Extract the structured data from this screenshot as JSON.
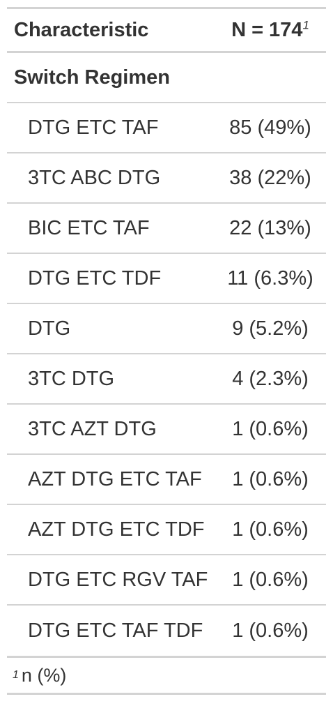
{
  "header": {
    "characteristic": "Characteristic",
    "n_label": "N = 174",
    "n_footnote_mark": "1"
  },
  "group": {
    "label": "Switch Regimen"
  },
  "rows": [
    {
      "label": "DTG ETC TAF",
      "value": "85 (49%)"
    },
    {
      "label": "3TC ABC DTG",
      "value": "38 (22%)"
    },
    {
      "label": "BIC ETC TAF",
      "value": "22 (13%)"
    },
    {
      "label": "DTG ETC TDF",
      "value": "11 (6.3%)"
    },
    {
      "label": "DTG",
      "value": "9 (5.2%)"
    },
    {
      "label": "3TC DTG",
      "value": "4 (2.3%)"
    },
    {
      "label": "3TC AZT DTG",
      "value": "1 (0.6%)"
    },
    {
      "label": "AZT DTG ETC TAF",
      "value": "1 (0.6%)"
    },
    {
      "label": "AZT DTG ETC TDF",
      "value": "1 (0.6%)"
    },
    {
      "label": "DTG ETC RGV TAF",
      "value": "1 (0.6%)"
    },
    {
      "label": "DTG ETC TAF TDF",
      "value": "1 (0.6%)"
    }
  ],
  "footnote": {
    "mark": "1",
    "text": "n (%)"
  }
}
